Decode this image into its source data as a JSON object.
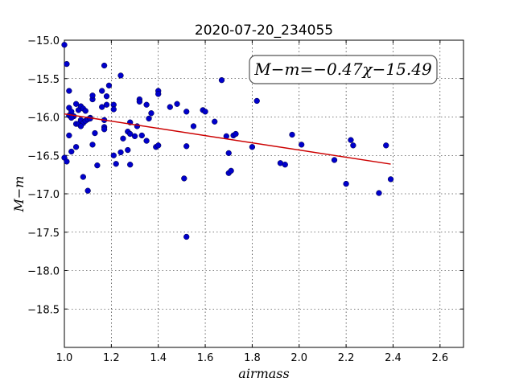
{
  "chart_data": {
    "type": "scatter",
    "title": "2020-07-20_234055",
    "xlabel": "airmass",
    "ylabel": "M−m",
    "xlim": [
      1.0,
      2.7
    ],
    "ylim": [
      -15.0,
      -19.0
    ],
    "y_inverted": true,
    "grid": true,
    "x_ticks": [
      1.0,
      1.2,
      1.4,
      1.6,
      1.8,
      2.0,
      2.2,
      2.4,
      2.6
    ],
    "x_tick_labels": [
      "1.0",
      "1.2",
      "1.4",
      "1.6",
      "1.8",
      "2.0",
      "2.2",
      "2.4",
      "2.6"
    ],
    "y_ticks": [
      -15.0,
      -15.5,
      -16.0,
      -16.5,
      -17.0,
      -17.5,
      -18.0,
      -18.5
    ],
    "y_tick_labels": [
      "−15.0",
      "−15.5",
      "−16.0",
      "−16.5",
      "−17.0",
      "−17.5",
      "−18.0",
      "−18.5"
    ],
    "annotation": "M−m=−0.47χ−15.49",
    "fit": {
      "slope": -0.47,
      "intercept": -15.49,
      "x_range": [
        1.0,
        2.39
      ],
      "color": "#cc0000"
    },
    "marker_color": "#0000cc",
    "points": [
      [
        1.0,
        -15.06
      ],
      [
        1.01,
        -15.31
      ],
      [
        1.02,
        -15.66
      ],
      [
        1.02,
        -15.88
      ],
      [
        1.03,
        -15.93
      ],
      [
        1.02,
        -15.98
      ],
      [
        1.04,
        -15.99
      ],
      [
        1.03,
        -16.01
      ],
      [
        1.05,
        -15.83
      ],
      [
        1.06,
        -15.91
      ],
      [
        1.07,
        -15.86
      ],
      [
        1.08,
        -15.89
      ],
      [
        1.09,
        -15.92
      ],
      [
        1.05,
        -16.09
      ],
      [
        1.06,
        -16.09
      ],
      [
        1.07,
        -16.04
      ],
      [
        1.08,
        -16.08
      ],
      [
        1.09,
        -16.05
      ],
      [
        1.07,
        -16.12
      ],
      [
        1.1,
        -16.03
      ],
      [
        1.11,
        -16.01
      ],
      [
        1.11,
        -16.02
      ],
      [
        1.12,
        -15.77
      ],
      [
        1.12,
        -15.72
      ],
      [
        1.13,
        -16.21
      ],
      [
        1.0,
        -16.53
      ],
      [
        1.01,
        -16.58
      ],
      [
        1.03,
        -16.45
      ],
      [
        1.05,
        -16.39
      ],
      [
        1.02,
        -16.24
      ],
      [
        1.08,
        -16.78
      ],
      [
        1.1,
        -16.96
      ],
      [
        1.12,
        -16.36
      ],
      [
        1.14,
        -16.63
      ],
      [
        1.16,
        -15.87
      ],
      [
        1.16,
        -15.66
      ],
      [
        1.17,
        -15.33
      ],
      [
        1.18,
        -15.84
      ],
      [
        1.18,
        -15.73
      ],
      [
        1.19,
        -15.59
      ],
      [
        1.17,
        -16.04
      ],
      [
        1.17,
        -16.13
      ],
      [
        1.17,
        -16.16
      ],
      [
        1.21,
        -15.84
      ],
      [
        1.21,
        -15.9
      ],
      [
        1.24,
        -15.46
      ],
      [
        1.21,
        -16.5
      ],
      [
        1.22,
        -16.61
      ],
      [
        1.24,
        -16.46
      ],
      [
        1.25,
        -16.28
      ],
      [
        1.27,
        -16.19
      ],
      [
        1.27,
        -16.43
      ],
      [
        1.28,
        -16.07
      ],
      [
        1.28,
        -16.62
      ],
      [
        1.28,
        -16.22
      ],
      [
        1.3,
        -16.25
      ],
      [
        1.31,
        -16.12
      ],
      [
        1.32,
        -15.77
      ],
      [
        1.32,
        -15.8
      ],
      [
        1.33,
        -16.24
      ],
      [
        1.35,
        -15.84
      ],
      [
        1.35,
        -16.31
      ],
      [
        1.36,
        -16.02
      ],
      [
        1.37,
        -15.95
      ],
      [
        1.39,
        -16.39
      ],
      [
        1.4,
        -16.37
      ],
      [
        1.4,
        -15.66
      ],
      [
        1.4,
        -15.7
      ],
      [
        1.45,
        -15.87
      ],
      [
        1.48,
        -15.83
      ],
      [
        1.51,
        -16.8
      ],
      [
        1.52,
        -15.93
      ],
      [
        1.52,
        -16.38
      ],
      [
        1.52,
        -17.56
      ],
      [
        1.55,
        -16.12
      ],
      [
        1.59,
        -15.91
      ],
      [
        1.6,
        -15.93
      ],
      [
        1.64,
        -16.06
      ],
      [
        1.67,
        -15.52
      ],
      [
        1.69,
        -16.25
      ],
      [
        1.7,
        -16.47
      ],
      [
        1.7,
        -16.73
      ],
      [
        1.71,
        -16.7
      ],
      [
        1.72,
        -16.24
      ],
      [
        1.73,
        -16.22
      ],
      [
        1.8,
        -16.39
      ],
      [
        1.82,
        -15.79
      ],
      [
        1.92,
        -16.6
      ],
      [
        1.94,
        -16.62
      ],
      [
        1.97,
        -16.23
      ],
      [
        2.01,
        -16.36
      ],
      [
        2.15,
        -16.56
      ],
      [
        2.2,
        -16.87
      ],
      [
        2.22,
        -16.3
      ],
      [
        2.23,
        -16.37
      ],
      [
        2.34,
        -16.99
      ],
      [
        2.37,
        -16.37
      ],
      [
        2.39,
        -16.81
      ]
    ]
  }
}
